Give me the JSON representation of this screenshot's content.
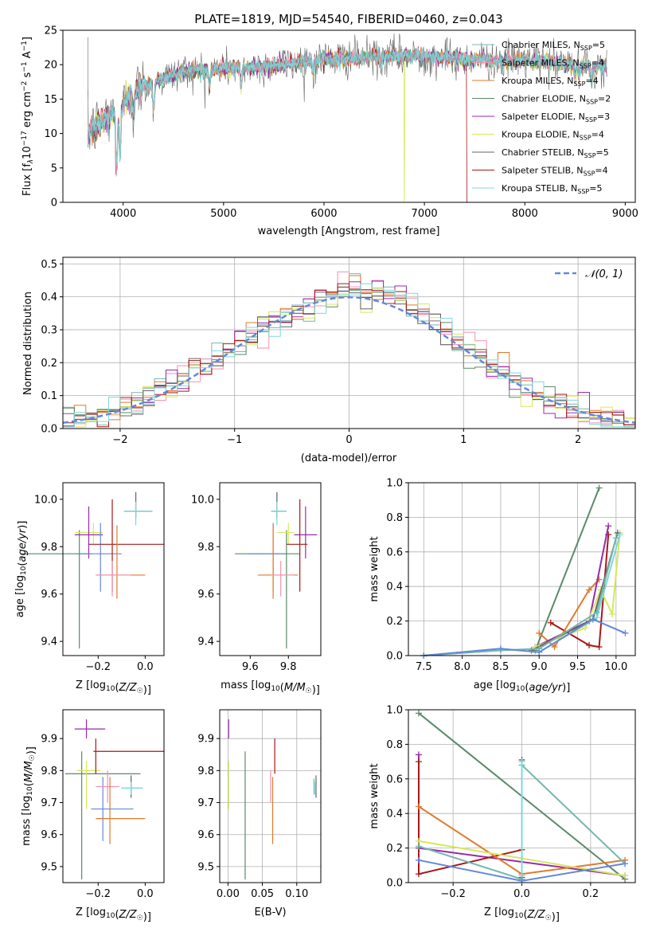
{
  "title": "PLATE=1819, MJD=54540, FIBERID=0460, z=0.043",
  "colors": {
    "Chabrier MILES": "#76b6b0",
    "Salpeter MILES": "#f48fb1",
    "Kroupa MILES": "#e07a2a",
    "Chabrier ELODIE": "#5a8a6a",
    "Salpeter ELODIE": "#9a2aaa",
    "Kroupa ELODIE": "#d6e85a",
    "Chabrier STELIB": "#666666",
    "Salpeter STELIB": "#a81818",
    "Kroupa STELIB": "#7fd8d8",
    "blue_line": "#6488d8"
  },
  "chart_data": [
    {
      "id": "spectrum",
      "type": "line",
      "xlabel": "wavelength [Angstrom, rest frame]",
      "ylabel": "Flux [f_λ 10^-17 erg cm^-2 s^-1 A^-1]",
      "ylabel_parts": [
        "Flux [f",
        "λ",
        "10",
        "−17",
        " erg cm",
        "−2",
        " s",
        "−1",
        " A",
        "−1",
        "]"
      ],
      "xlim": [
        3400,
        9100
      ],
      "ylim": [
        0,
        25
      ],
      "xticks": [
        4000,
        5000,
        6000,
        7000,
        8000,
        9000
      ],
      "yticks": [
        0,
        5,
        10,
        15,
        20,
        25
      ],
      "continuum": [
        [
          3650,
          10
        ],
        [
          3800,
          12
        ],
        [
          3950,
          13.5
        ],
        [
          4100,
          16
        ],
        [
          4300,
          17.5
        ],
        [
          4600,
          19
        ],
        [
          5000,
          19.5
        ],
        [
          5400,
          19.7
        ],
        [
          5700,
          20.3
        ],
        [
          6000,
          20.8
        ],
        [
          6300,
          21.0
        ],
        [
          6600,
          21.2
        ],
        [
          6900,
          21.3
        ],
        [
          7200,
          21.1
        ],
        [
          7400,
          20.8
        ],
        [
          7700,
          20.6
        ],
        [
          8000,
          20.6
        ],
        [
          8300,
          20.3
        ],
        [
          8600,
          19.9
        ],
        [
          8800,
          19.6
        ]
      ],
      "absorption": [
        [
          3934,
          8
        ],
        [
          3969,
          7
        ],
        [
          4101,
          3
        ],
        [
          4304,
          4
        ],
        [
          4861,
          2.5
        ],
        [
          5175,
          3
        ],
        [
          5893,
          2
        ],
        [
          6563,
          1.5
        ],
        [
          8498,
          1.5
        ],
        [
          8542,
          2
        ],
        [
          8662,
          2
        ]
      ],
      "drop_features": [
        {
          "series": "Kroupa ELODIE",
          "x": 6800
        },
        {
          "series": "Salpeter STELIB",
          "x": 7420
        }
      ],
      "legend": [
        {
          "name": "Chabrier MILES",
          "nssp": "5"
        },
        {
          "name": "Salpeter MILES",
          "nssp": "4"
        },
        {
          "name": "Kroupa MILES",
          "nssp": "4"
        },
        {
          "name": "Chabrier ELODIE",
          "nssp": "2"
        },
        {
          "name": "Salpeter ELODIE",
          "nssp": "3"
        },
        {
          "name": "Kroupa ELODIE",
          "nssp": "4"
        },
        {
          "name": "Chabrier STELIB",
          "nssp": "5"
        },
        {
          "name": "Salpeter STELIB",
          "nssp": "4"
        },
        {
          "name": "Kroupa STELIB",
          "nssp": "5"
        }
      ],
      "legend_placement": "top-right"
    },
    {
      "id": "residuals",
      "type": "histogram",
      "xlabel": "(data-model)/error",
      "ylabel": "Normed distribution",
      "xlim": [
        -2.5,
        2.5
      ],
      "ylim": [
        0,
        0.52
      ],
      "xticks": [
        -2,
        -1,
        0,
        1,
        2
      ],
      "yticks": [
        0.0,
        0.1,
        0.2,
        0.3,
        0.4,
        0.5
      ],
      "bin_width": 0.1,
      "grid": true,
      "legend_label": "𝒩(0, 1)",
      "legend_placement": "top-right",
      "series_order": [
        "Chabrier MILES",
        "Salpeter MILES",
        "Kroupa MILES",
        "Chabrier ELODIE",
        "Salpeter ELODIE",
        "Kroupa ELODIE",
        "Chabrier STELIB",
        "Salpeter STELIB",
        "Kroupa STELIB"
      ]
    },
    {
      "id": "z-age",
      "type": "errorbar",
      "xlabel": "Z [log10(Z/Z☉)]",
      "ylabel": "age [log10(age/yr)]",
      "xlim": [
        -0.35,
        0.08
      ],
      "ylim": [
        9.34,
        10.07
      ],
      "xticks": [
        -0.2,
        0.0
      ],
      "yticks": [
        9.4,
        9.6,
        9.8,
        10.0
      ],
      "points": [
        {
          "s": "Chabrier ELODIE",
          "x": -0.28,
          "xe": [
            0.25,
            0.05
          ],
          "y": 9.77,
          "ye": [
            0.4,
            0.1
          ]
        },
        {
          "s": "Kroupa ELODIE",
          "x": -0.22,
          "xe": [
            0.08,
            0.04
          ],
          "y": 9.86,
          "ye": [
            0.05,
            0.04
          ]
        },
        {
          "s": "Salpeter ELODIE",
          "x": -0.24,
          "xe": [
            0.06,
            0.06
          ],
          "y": 9.85,
          "ye": [
            0.1,
            0.12
          ]
        },
        {
          "s": "Blue",
          "x": -0.19,
          "xe": [
            0.1,
            0.09
          ],
          "y": 9.77,
          "ye": [
            0.16,
            0.13
          ]
        },
        {
          "s": "Salpeter STELIB",
          "x": -0.14,
          "xe": [
            0.1,
            0.22
          ],
          "y": 9.81,
          "ye": [
            0.2,
            0.19
          ]
        },
        {
          "s": "Kroupa MILES",
          "x": -0.12,
          "xe": [
            0.09,
            0.12
          ],
          "y": 9.68,
          "ye": [
            0.1,
            0.21
          ]
        },
        {
          "s": "Salpeter MILES",
          "x": -0.14,
          "xe": [
            0.07,
            0.08
          ],
          "y": 9.68,
          "ye": [
            0.09,
            0.06
          ]
        },
        {
          "s": "Chabrier MILES",
          "x": -0.04,
          "xe": [
            0.05,
            0.07
          ],
          "y": 9.95,
          "ye": [
            0.03,
            0.08
          ]
        },
        {
          "s": "Chabrier STELIB",
          "x": -0.04,
          "xe": [
            0.05,
            0.07
          ],
          "y": 9.95,
          "ye": [
            0.03,
            0.08
          ]
        },
        {
          "s": "Kroupa STELIB",
          "x": -0.04,
          "xe": [
            0.05,
            0.07
          ],
          "y": 9.95,
          "ye": [
            0.06,
            0.04
          ]
        }
      ]
    },
    {
      "id": "mass-age",
      "type": "errorbar",
      "xlabel": "mass [log10(M/M☉)]",
      "ylabel": "",
      "xlim": [
        9.44,
        9.97
      ],
      "ylim": [
        9.34,
        10.07
      ],
      "xticks": [
        9.6,
        9.8
      ],
      "yticks": [
        9.4,
        9.6,
        9.8,
        10.0
      ],
      "points": [
        {
          "s": "Chabrier ELODIE",
          "x": 9.79,
          "xe": [
            0.27,
            0.07
          ],
          "y": 9.77,
          "ye": [
            0.4,
            0.1
          ]
        },
        {
          "s": "Kroupa ELODIE",
          "x": 9.8,
          "xe": [
            0.06,
            0.03
          ],
          "y": 9.86,
          "ye": [
            0.05,
            0.04
          ]
        },
        {
          "s": "Salpeter ELODIE",
          "x": 9.89,
          "xe": [
            0.06,
            0.06
          ],
          "y": 9.85,
          "ye": [
            0.1,
            0.12
          ]
        },
        {
          "s": "Blue",
          "x": 9.72,
          "xe": [
            0.13,
            0.06
          ],
          "y": 9.77,
          "ye": [
            0.16,
            0.13
          ]
        },
        {
          "s": "Salpeter STELIB",
          "x": 9.86,
          "xe": [
            0.07,
            0.04
          ],
          "y": 9.81,
          "ye": [
            0.2,
            0.19
          ]
        },
        {
          "s": "Kroupa MILES",
          "x": 9.72,
          "xe": [
            0.08,
            0.13
          ],
          "y": 9.68,
          "ye": [
            0.1,
            0.21
          ]
        },
        {
          "s": "Salpeter MILES",
          "x": 9.76,
          "xe": [
            0.05,
            0.07
          ],
          "y": 9.68,
          "ye": [
            0.09,
            0.06
          ]
        },
        {
          "s": "Chabrier MILES",
          "x": 9.74,
          "xe": [
            0.03,
            0.05
          ],
          "y": 9.95,
          "ye": [
            0.03,
            0.08
          ]
        },
        {
          "s": "Chabrier STELIB",
          "x": 9.74,
          "xe": [
            0.03,
            0.05
          ],
          "y": 9.95,
          "ye": [
            0.03,
            0.08
          ]
        },
        {
          "s": "Kroupa STELIB",
          "x": 9.74,
          "xe": [
            0.03,
            0.05
          ],
          "y": 9.95,
          "ye": [
            0.06,
            0.04
          ]
        }
      ]
    },
    {
      "id": "age-weight",
      "type": "line",
      "xlabel": "age [log10(age/yr)]",
      "ylabel": "mass weight",
      "xlim": [
        7.3,
        10.25
      ],
      "ylim": [
        0,
        1.0
      ],
      "xticks": [
        7.5,
        8.0,
        8.5,
        9.0,
        9.5,
        10.0
      ],
      "yticks": [
        0.0,
        0.2,
        0.4,
        0.6,
        0.8,
        1.0
      ],
      "grid": true,
      "series": [
        {
          "s": "Chabrier ELODIE",
          "x": [
            8.95,
            9.78
          ],
          "y": [
            0.03,
            0.97
          ]
        },
        {
          "s": "Salpeter STELIB",
          "x": [
            9.15,
            9.65,
            9.78,
            9.9
          ],
          "y": [
            0.19,
            0.06,
            0.05,
            0.7
          ]
        },
        {
          "s": "Kroupa MILES",
          "x": [
            9.0,
            9.2,
            9.65,
            9.78
          ],
          "y": [
            0.13,
            0.05,
            0.38,
            0.44
          ]
        },
        {
          "s": "Salpeter ELODIE",
          "x": [
            8.95,
            9.65,
            9.9
          ],
          "y": [
            0.05,
            0.2,
            0.75
          ]
        },
        {
          "s": "Kroupa ELODIE",
          "x": [
            8.95,
            9.6,
            9.8,
            9.95,
            10.05
          ],
          "y": [
            0.05,
            0.16,
            0.38,
            0.24,
            0.71
          ]
        },
        {
          "s": "Chabrier STELIB",
          "x": [
            8.9,
            9.7,
            10.02
          ],
          "y": [
            0.03,
            0.21,
            0.71
          ]
        },
        {
          "s": "Kroupa STELIB",
          "x": [
            7.5,
            8.5,
            9.0,
            9.75,
            10.05
          ],
          "y": [
            0.0,
            0.04,
            0.02,
            0.22,
            0.7
          ]
        },
        {
          "s": "Chabrier MILES",
          "x": [
            7.5,
            8.5,
            9.0,
            9.75,
            10.0
          ],
          "y": [
            0.0,
            0.03,
            0.04,
            0.25,
            0.68
          ]
        },
        {
          "s": "Blue",
          "x": [
            7.5,
            8.5,
            9.0,
            9.7,
            10.12
          ],
          "y": [
            0.0,
            0.04,
            0.02,
            0.21,
            0.13
          ]
        }
      ]
    },
    {
      "id": "z-mass",
      "type": "errorbar",
      "xlabel": "Z [log10(Z/Z☉)]",
      "ylabel": "mass [log10(M/M☉)]",
      "xlim": [
        -0.35,
        0.08
      ],
      "ylim": [
        9.45,
        9.99
      ],
      "xticks": [
        -0.2,
        0.0
      ],
      "yticks": [
        9.5,
        9.6,
        9.7,
        9.8,
        9.9
      ],
      "points": [
        {
          "s": "Chabrier ELODIE",
          "x": -0.27,
          "xe": [
            0.07,
            0.25
          ],
          "y": 9.79,
          "ye": [
            0.33,
            0.07
          ]
        },
        {
          "s": "Salpeter ELODIE",
          "x": -0.25,
          "xe": [
            0.05,
            0.08
          ],
          "y": 9.93,
          "ye": [
            0.03,
            0.03
          ]
        },
        {
          "s": "Kroupa ELODIE",
          "x": -0.25,
          "xe": [
            0.04,
            0.06
          ],
          "y": 9.8,
          "ye": [
            0.12,
            0.03
          ]
        },
        {
          "s": "Salpeter STELIB",
          "x": -0.21,
          "xe": [
            0.01,
            0.29
          ],
          "y": 9.86,
          "ye": [
            0.07,
            0.04
          ]
        },
        {
          "s": "Blue",
          "x": -0.18,
          "xe": [
            0.05,
            0.13
          ],
          "y": 9.68,
          "ye": [
            0.1,
            0.1
          ]
        },
        {
          "s": "Salpeter MILES",
          "x": -0.16,
          "xe": [
            0.05,
            0.05
          ],
          "y": 9.75,
          "ye": [
            0.05,
            0.05
          ]
        },
        {
          "s": "Kroupa MILES",
          "x": -0.15,
          "xe": [
            0.06,
            0.15
          ],
          "y": 9.65,
          "ye": [
            0.08,
            0.13
          ]
        },
        {
          "s": "Chabrier MILES",
          "x": -0.06,
          "xe": [
            0.04,
            0.05
          ],
          "y": 9.745,
          "ye": [
            0.02,
            0.03
          ]
        },
        {
          "s": "Chabrier STELIB",
          "x": -0.06,
          "xe": [
            0.04,
            0.05
          ],
          "y": 9.745,
          "ye": [
            0.03,
            0.04
          ]
        },
        {
          "s": "Kroupa STELIB",
          "x": -0.06,
          "xe": [
            0.04,
            0.05
          ],
          "y": 9.745,
          "ye": [
            0.02,
            0.02
          ]
        }
      ]
    },
    {
      "id": "ebv-mass",
      "type": "errorbar",
      "xlabel": "E(B-V)",
      "ylabel": "",
      "xlim": [
        -0.012,
        0.135
      ],
      "ylim": [
        9.45,
        9.99
      ],
      "xticks": [
        0.0,
        0.05,
        0.1
      ],
      "yticks": [
        9.5,
        9.6,
        9.7,
        9.8,
        9.9
      ],
      "grid": true,
      "points": [
        {
          "s": "Salpeter ELODIE",
          "x": 0.001,
          "xe": [
            0,
            0
          ],
          "y": 9.93,
          "ye": [
            0.03,
            0.03
          ]
        },
        {
          "s": "Kroupa ELODIE",
          "x": 0.001,
          "xe": [
            0,
            0
          ],
          "y": 9.8,
          "ye": [
            0.12,
            0.03
          ]
        },
        {
          "s": "Chabrier ELODIE",
          "x": 0.025,
          "xe": [
            0,
            0
          ],
          "y": 9.79,
          "ye": [
            0.33,
            0.07
          ]
        },
        {
          "s": "Salpeter MILES",
          "x": 0.062,
          "xe": [
            0,
            0
          ],
          "y": 9.75,
          "ye": [
            0.05,
            0.05
          ]
        },
        {
          "s": "Kroupa MILES",
          "x": 0.065,
          "xe": [
            0,
            0
          ],
          "y": 9.65,
          "ye": [
            0.08,
            0.13
          ]
        },
        {
          "s": "Salpeter STELIB",
          "x": 0.068,
          "xe": [
            0,
            0
          ],
          "y": 9.86,
          "ye": [
            0.07,
            0.04
          ]
        },
        {
          "s": "Chabrier MILES",
          "x": 0.125,
          "xe": [
            0,
            0
          ],
          "y": 9.745,
          "ye": [
            0.02,
            0.03
          ]
        },
        {
          "s": "Kroupa STELIB",
          "x": 0.126,
          "xe": [
            0,
            0
          ],
          "y": 9.745,
          "ye": [
            0.02,
            0.02
          ]
        },
        {
          "s": "Chabrier STELIB",
          "x": 0.128,
          "xe": [
            0,
            0
          ],
          "y": 9.745,
          "ye": [
            0.03,
            0.04
          ]
        }
      ]
    },
    {
      "id": "Z-weight",
      "type": "line",
      "xlabel": "Z [log10(Z/Z☉)]",
      "ylabel": "mass weight",
      "xlim": [
        -0.33,
        0.33
      ],
      "ylim": [
        0,
        1.0
      ],
      "xticks": [
        -0.2,
        0.0,
        0.2
      ],
      "yticks": [
        0.0,
        0.2,
        0.4,
        0.6,
        0.8,
        1.0
      ],
      "grid": true,
      "series": [
        {
          "s": "Chabrier ELODIE",
          "x": [
            -0.3,
            0.3
          ],
          "y": [
            0.98,
            0.02
          ]
        },
        {
          "s": "Salpeter ELODIE",
          "x": [
            -0.3,
            -0.3,
            0.3
          ],
          "y": [
            0.74,
            0.2,
            0.04
          ]
        },
        {
          "s": "Salpeter STELIB",
          "x": [
            -0.3,
            -0.3,
            0.0
          ],
          "y": [
            0.7,
            0.05,
            0.19
          ]
        },
        {
          "s": "Kroupa MILES",
          "x": [
            -0.3,
            0.0,
            0.3
          ],
          "y": [
            0.44,
            0.05,
            0.13
          ]
        },
        {
          "s": "Kroupa ELODIE",
          "x": [
            -0.3,
            0.3
          ],
          "y": [
            0.24,
            0.04
          ]
        },
        {
          "s": "Chabrier MILES",
          "x": [
            -0.3,
            0.0,
            0.0,
            0.3
          ],
          "y": [
            0.21,
            0.02,
            0.68,
            0.11
          ]
        },
        {
          "s": "Chabrier STELIB",
          "x": [
            0.0,
            0.0
          ],
          "y": [
            0.71,
            0.03
          ]
        },
        {
          "s": "Kroupa STELIB",
          "x": [
            0.0,
            0.0
          ],
          "y": [
            0.7,
            0.04
          ]
        },
        {
          "s": "Blue",
          "x": [
            -0.3,
            0.0,
            0.3
          ],
          "y": [
            0.13,
            0.01,
            0.11
          ]
        }
      ]
    }
  ]
}
